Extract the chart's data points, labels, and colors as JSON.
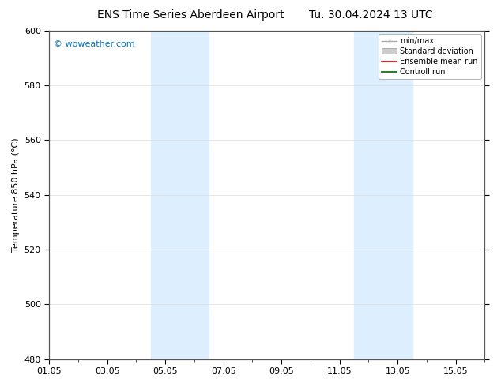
{
  "title_left": "ENS Time Series Aberdeen Airport",
  "title_right": "Tu. 30.04.2024 13 UTC",
  "ylabel": "Temperature 850 hPa (°C)",
  "ylim": [
    480,
    600
  ],
  "yticks": [
    480,
    500,
    520,
    540,
    560,
    580,
    600
  ],
  "xlim": [
    0,
    15
  ],
  "xtick_labels": [
    "01.05",
    "03.05",
    "05.05",
    "07.05",
    "09.05",
    "11.05",
    "13.05",
    "15.05"
  ],
  "xtick_positions_days": [
    0,
    2,
    4,
    6,
    8,
    10,
    12,
    14
  ],
  "shaded_bands": [
    {
      "x_start_day": 3.5,
      "x_end_day": 5.5
    },
    {
      "x_start_day": 10.5,
      "x_end_day": 12.5
    }
  ],
  "shade_color": "#ddeeff",
  "watermark": "© woweather.com",
  "watermark_color": "#0077bb",
  "background_color": "#ffffff",
  "plot_bg_color": "#ffffff",
  "legend_entries": [
    "min/max",
    "Standard deviation",
    "Ensemble mean run",
    "Controll run"
  ],
  "legend_colors": [
    "#aaaaaa",
    "#cccccc",
    "#cc0000",
    "#006600"
  ],
  "grid_color": "#dddddd",
  "title_fontsize": 10,
  "axis_label_fontsize": 8,
  "tick_fontsize": 8,
  "legend_fontsize": 7,
  "watermark_fontsize": 8
}
